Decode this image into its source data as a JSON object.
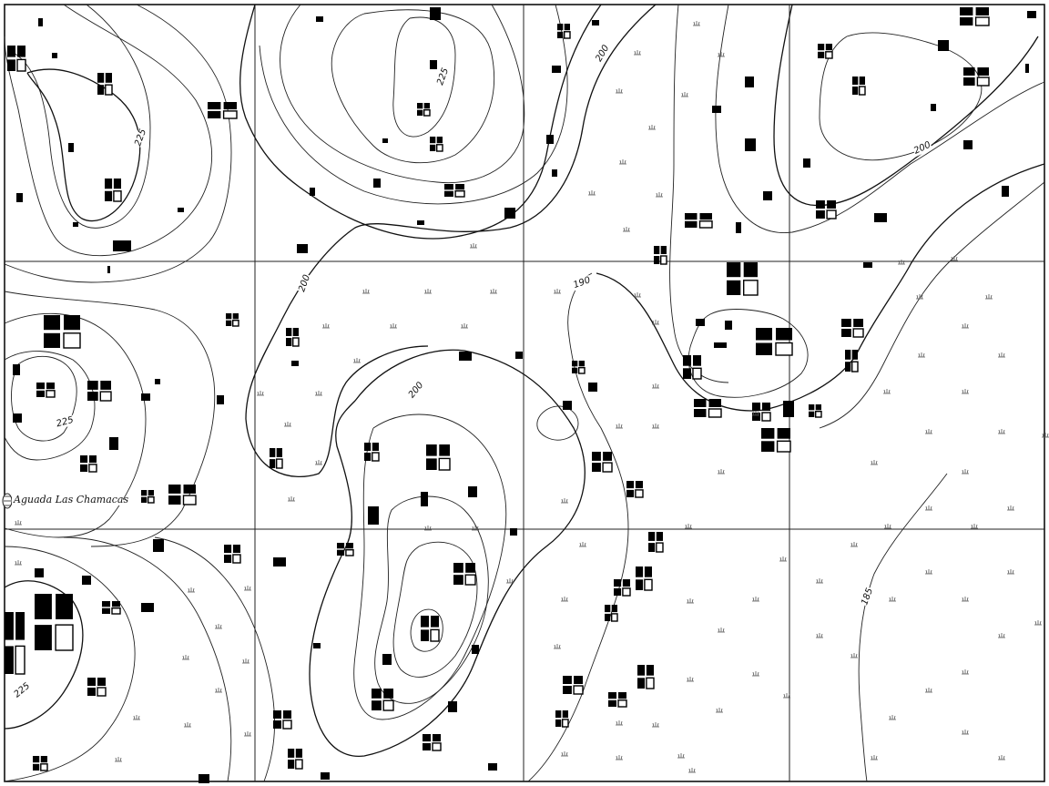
{
  "map": {
    "contour_labels": [
      "225",
      "225",
      "200",
      "200",
      "200",
      "190",
      "200",
      "225",
      "225",
      "185"
    ],
    "place_labels": [
      "Aguada Las Chamacas"
    ],
    "colors": {
      "ink": "#000000",
      "paper": "#ffffff",
      "grid": "#222222"
    }
  }
}
